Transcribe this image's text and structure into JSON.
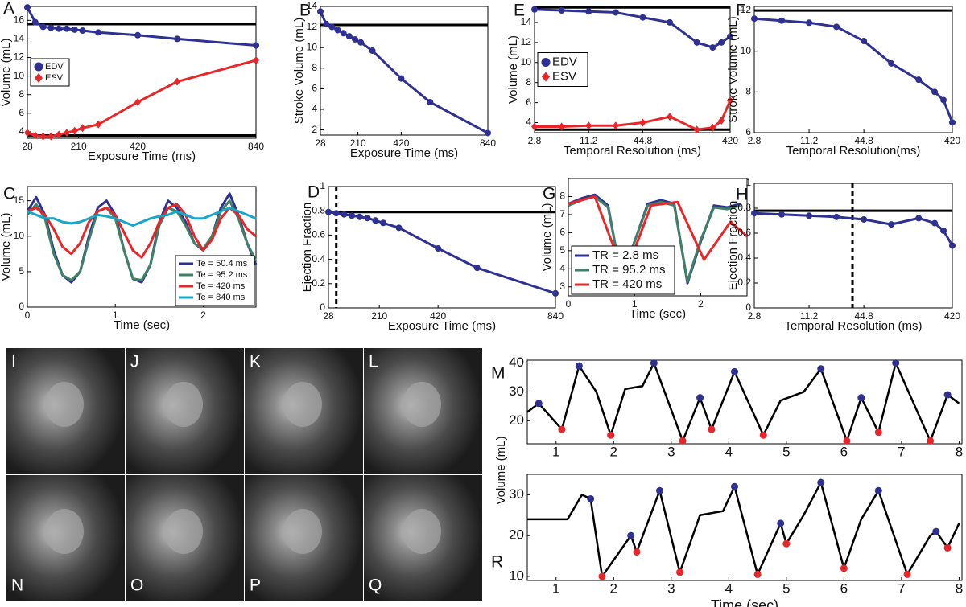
{
  "chart_data": [
    {
      "type": "line",
      "panel": "A",
      "xlabel": "Exposure Time (ms)",
      "ylabel": "Volume (mL)",
      "x": [
        28,
        56,
        84,
        112,
        140,
        168,
        196,
        224,
        280,
        420,
        560,
        840
      ],
      "xlim": [
        28,
        840
      ],
      "xticks": [
        28,
        210,
        420,
        840
      ],
      "ylim": [
        3.3,
        17.5
      ],
      "yticks": [
        4,
        6,
        8,
        10,
        12,
        14,
        16
      ],
      "hlines": [
        15.6,
        3.6
      ],
      "legend": "center left",
      "series": [
        {
          "name": "EDV",
          "color": "#2e3192",
          "marker": "circle",
          "values": [
            17.4,
            15.8,
            15.3,
            15.2,
            15.1,
            15.1,
            15.0,
            14.9,
            14.7,
            14.4,
            14.0,
            13.3
          ]
        },
        {
          "name": "ESV",
          "color": "#e8262a",
          "marker": "diamond",
          "values": [
            3.9,
            3.6,
            3.5,
            3.5,
            3.7,
            3.9,
            4.1,
            4.4,
            4.8,
            7.2,
            9.4,
            11.7
          ]
        }
      ]
    },
    {
      "type": "line",
      "panel": "B",
      "xlabel": "Exposure Time (ms)",
      "ylabel": "Stroke Volume (mL)",
      "x": [
        28,
        56,
        84,
        112,
        140,
        168,
        196,
        224,
        280,
        420,
        560,
        840
      ],
      "xlim": [
        28,
        840
      ],
      "xticks": [
        28,
        210,
        420,
        840
      ],
      "ylim": [
        1.5,
        14
      ],
      "yticks": [
        2,
        4,
        6,
        8,
        10,
        12,
        14
      ],
      "hlines": [
        12.2
      ],
      "series": [
        {
          "color": "#2e3192",
          "marker": "circle",
          "values": [
            13.5,
            12.3,
            12.0,
            11.7,
            11.4,
            11.1,
            10.8,
            10.5,
            9.7,
            7.0,
            4.7,
            1.7
          ]
        }
      ]
    },
    {
      "type": "line",
      "panel": "C",
      "xlabel": "Time (sec)",
      "ylabel": "Volume (mL)",
      "x": [
        0,
        0.1,
        0.2,
        0.3,
        0.4,
        0.5,
        0.6,
        0.7,
        0.8,
        0.9,
        1.0,
        1.1,
        1.2,
        1.3,
        1.4,
        1.5,
        1.6,
        1.7,
        1.8,
        1.9,
        2.0,
        2.1,
        2.2,
        2.3,
        2.4,
        2.5,
        2.6
      ],
      "xlim": [
        0,
        2.6
      ],
      "xticks": [
        0,
        1,
        2
      ],
      "ylim": [
        0,
        17
      ],
      "yticks": [
        0,
        5,
        10,
        15
      ],
      "legend": "lower right",
      "series": [
        {
          "name": "Te = 50.4 ms",
          "color": "#2e3192",
          "values": [
            13.5,
            15.5,
            13,
            8,
            4.5,
            3.5,
            5,
            10,
            14,
            15,
            13,
            8,
            4,
            3.5,
            6,
            12,
            15,
            14,
            12,
            9,
            8,
            10,
            14,
            16,
            13,
            9,
            6
          ]
        },
        {
          "name": "Te = 95.2 ms",
          "color": "#3f8066",
          "values": [
            13,
            14.5,
            12.5,
            7.5,
            4.5,
            3.8,
            5,
            9.5,
            13.5,
            14,
            12.5,
            8,
            4,
            3.8,
            6,
            11.5,
            14,
            13.5,
            11.5,
            9,
            8.2,
            10,
            13.5,
            15,
            12.5,
            9,
            6.5
          ]
        },
        {
          "name": "Te = 420 ms",
          "color": "#e8262a",
          "values": [
            13.5,
            14,
            13,
            11,
            8.5,
            7.5,
            9,
            12,
            13.5,
            14,
            13,
            10.5,
            8,
            7,
            9,
            12,
            14,
            14.5,
            13,
            10,
            8,
            9.5,
            12.5,
            14,
            13,
            11,
            10
          ]
        },
        {
          "name": "Te = 840 ms",
          "color": "#16a6c9",
          "values": [
            13.5,
            13,
            12.5,
            12.5,
            12,
            11.8,
            12,
            12.5,
            13,
            12.8,
            12.5,
            12,
            11.5,
            12,
            12.5,
            12.8,
            13,
            13.5,
            13,
            12.5,
            12.5,
            13,
            13.5,
            14,
            13.5,
            13,
            12.5
          ]
        }
      ]
    },
    {
      "type": "line",
      "panel": "D",
      "xlabel": "Exposure Time (ms)",
      "ylabel": "Ejection Fraction",
      "x": [
        28,
        56,
        84,
        112,
        140,
        168,
        196,
        224,
        280,
        420,
        560,
        840
      ],
      "xlim": [
        28,
        840
      ],
      "xticks": [
        28,
        210,
        420,
        840
      ],
      "ylim": [
        0,
        1
      ],
      "yticks": [
        0,
        0.2,
        0.4,
        0.6,
        0.8,
        1
      ],
      "hlines": [
        0.79
      ],
      "vlines": [
        56
      ],
      "series": [
        {
          "color": "#2e3192",
          "marker": "circle",
          "values": [
            0.79,
            0.78,
            0.77,
            0.76,
            0.75,
            0.74,
            0.72,
            0.7,
            0.66,
            0.49,
            0.33,
            0.12
          ]
        }
      ]
    },
    {
      "type": "line",
      "panel": "E",
      "xlabel": "Temporal Resolution (ms)",
      "ylabel": "Volume (mL)",
      "xscale": "log",
      "x": [
        2.8,
        5.6,
        11.2,
        22.4,
        44.8,
        89.6,
        179.2,
        268.8,
        336,
        420
      ],
      "xlim": [
        2.8,
        420
      ],
      "xticks": [
        2.8,
        11.2,
        44.8,
        420
      ],
      "ylim": [
        3,
        15.6
      ],
      "yticks": [
        4,
        6,
        8,
        10,
        12,
        14
      ],
      "hlines": [
        15.5,
        3.3
      ],
      "legend": "center left",
      "series": [
        {
          "name": "EDV",
          "color": "#2e3192",
          "marker": "circle",
          "values": [
            15.3,
            15.2,
            15.1,
            15.0,
            14.5,
            14.0,
            12.0,
            11.5,
            12.0,
            12.6
          ]
        },
        {
          "name": "ESV",
          "color": "#e8262a",
          "marker": "diamond",
          "values": [
            3.6,
            3.6,
            3.7,
            3.7,
            4.0,
            4.6,
            3.3,
            3.5,
            4.2,
            6.2
          ]
        }
      ]
    },
    {
      "type": "line",
      "panel": "F",
      "xlabel": "Temporal Resolution(ms)",
      "ylabel": "Stroke Volume (mL)",
      "xscale": "log",
      "x": [
        2.8,
        5.6,
        11.2,
        22.4,
        44.8,
        89.6,
        179.2,
        268.8,
        336,
        420
      ],
      "xlim": [
        2.8,
        420
      ],
      "xticks": [
        2.8,
        11.2,
        44.8,
        420
      ],
      "ylim": [
        6,
        12.2
      ],
      "yticks": [
        6,
        8,
        10,
        12
      ],
      "hlines": [
        12
      ],
      "series": [
        {
          "color": "#2e3192",
          "marker": "circle",
          "values": [
            11.6,
            11.5,
            11.4,
            11.2,
            10.5,
            9.4,
            8.6,
            8.0,
            7.6,
            6.5
          ]
        }
      ]
    },
    {
      "type": "line",
      "panel": "G",
      "xlabel": "Time (sec)",
      "ylabel": "Volume (mL)",
      "x": [
        0,
        0.2,
        0.4,
        0.6,
        0.8,
        1.0,
        1.2,
        1.4,
        1.6,
        1.8,
        2.0,
        2.2,
        2.4,
        2.6
      ],
      "xlim": [
        0,
        2.7
      ],
      "xticks": [
        0,
        1,
        2
      ],
      "ylim": [
        2.5,
        9
      ],
      "yticks": [
        3,
        4,
        5,
        6,
        7,
        8
      ],
      "legend": "lower left",
      "series": [
        {
          "name": "TR = 2.8 ms",
          "color": "#2e3192",
          "values": [
            7.6,
            7.9,
            8.1,
            7.5,
            3.5,
            5.5,
            7.6,
            7.8,
            7.6,
            3.2,
            5.5,
            7.5,
            7.4,
            7.6
          ]
        },
        {
          "name": "TR = 95.2 ms",
          "color": "#3f8066",
          "values": [
            7.5,
            7.8,
            8.0,
            7.4,
            3.6,
            5.5,
            7.5,
            7.7,
            7.5,
            3.3,
            5.6,
            7.4,
            7.3,
            7.5
          ]
        },
        {
          "name": "TR = 420 ms",
          "color": "#e8262a",
          "x": [
            0,
            0.4,
            0.85,
            1.25,
            1.65,
            2.05,
            2.45,
            2.7
          ],
          "values": [
            7.6,
            8.0,
            3.6,
            7.5,
            7.7,
            4.5,
            6.6,
            5.8
          ]
        }
      ]
    },
    {
      "type": "line",
      "panel": "H",
      "xlabel": "Temporal Resolution (ms)",
      "ylabel": "Ejection Fraction",
      "xscale": "log",
      "x": [
        2.8,
        5.6,
        11.2,
        22.4,
        44.8,
        89.6,
        179.2,
        268.8,
        336,
        420
      ],
      "xlim": [
        2.8,
        420
      ],
      "xticks": [
        2.8,
        11.2,
        44.8,
        420
      ],
      "ylim": [
        0,
        1
      ],
      "yticks": [
        0,
        0.2,
        0.4,
        0.6,
        0.8,
        1
      ],
      "hlines": [
        0.78
      ],
      "vlines": [
        33.6
      ],
      "series": [
        {
          "color": "#2e3192",
          "marker": "circle",
          "values": [
            0.76,
            0.75,
            0.74,
            0.73,
            0.71,
            0.67,
            0.72,
            0.68,
            0.62,
            0.5
          ]
        }
      ]
    },
    {
      "type": "line",
      "panel": "M",
      "ylabel": "Volume (mL)",
      "xlim": [
        0.5,
        8.05
      ],
      "xticks": [
        1,
        2,
        3,
        4,
        5,
        6,
        7,
        8
      ],
      "ylim": [
        12,
        41
      ],
      "yticks": [
        20,
        30,
        40
      ],
      "series": [
        {
          "color": "#000000",
          "x": [
            0.5,
            0.7,
            1.1,
            1.4,
            1.7,
            1.95,
            2.2,
            2.5,
            2.7,
            3.2,
            3.5,
            3.7,
            4.1,
            4.6,
            4.9,
            5.3,
            5.6,
            6.05,
            6.3,
            6.6,
            6.9,
            7.5,
            7.8,
            8.0
          ],
          "values": [
            23,
            26,
            17,
            39,
            30,
            15,
            31,
            32,
            40,
            13,
            28,
            17,
            37,
            15,
            27,
            30,
            38,
            13,
            28,
            16,
            40,
            13,
            29,
            26
          ]
        },
        {
          "color": "#2e3192",
          "marker": "circle",
          "line": false,
          "x": [
            0.7,
            1.4,
            2.7,
            3.5,
            4.1,
            5.6,
            6.3,
            6.9,
            7.8
          ],
          "values": [
            26,
            39,
            40,
            28,
            37,
            38,
            28,
            40,
            29
          ]
        },
        {
          "color": "#e8262a",
          "marker": "circle",
          "line": false,
          "x": [
            1.1,
            1.95,
            3.2,
            3.7,
            4.6,
            6.05,
            6.6,
            7.5
          ],
          "values": [
            17,
            15,
            13,
            17,
            15,
            13,
            16,
            13
          ]
        }
      ]
    },
    {
      "type": "line",
      "panel": "R",
      "xlabel": "Time (sec)",
      "xlim": [
        0.5,
        8.05
      ],
      "xticks": [
        1,
        2,
        3,
        4,
        5,
        6,
        7,
        8
      ],
      "ylim": [
        9,
        35
      ],
      "yticks": [
        10,
        20,
        30
      ],
      "series": [
        {
          "color": "#000000",
          "x": [
            0.5,
            1.2,
            1.45,
            1.6,
            1.8,
            2.3,
            2.4,
            2.8,
            3.15,
            3.5,
            3.9,
            4.1,
            4.5,
            4.9,
            5.0,
            5.3,
            5.6,
            6.0,
            6.3,
            6.6,
            7.1,
            7.5,
            7.6,
            7.8,
            8.0
          ],
          "values": [
            24,
            24,
            30,
            29,
            10,
            20,
            16,
            31,
            11,
            25,
            26,
            32,
            10.5,
            23,
            18,
            25,
            33,
            12,
            24,
            31,
            10.5,
            20,
            21,
            17,
            23
          ]
        },
        {
          "color": "#2e3192",
          "marker": "circle",
          "line": false,
          "x": [
            1.6,
            2.3,
            2.8,
            4.1,
            4.9,
            5.6,
            6.6,
            7.6
          ],
          "values": [
            29,
            20,
            31,
            32,
            23,
            33,
            31,
            21
          ]
        },
        {
          "color": "#e8262a",
          "marker": "circle",
          "line": false,
          "x": [
            1.8,
            2.4,
            3.15,
            4.5,
            5.0,
            6.0,
            7.1,
            7.8
          ],
          "values": [
            10,
            16,
            11,
            10.5,
            18,
            12,
            10.5,
            17
          ]
        }
      ]
    }
  ],
  "image_panels": [
    "I",
    "J",
    "K",
    "L",
    "N",
    "O",
    "P",
    "Q"
  ]
}
